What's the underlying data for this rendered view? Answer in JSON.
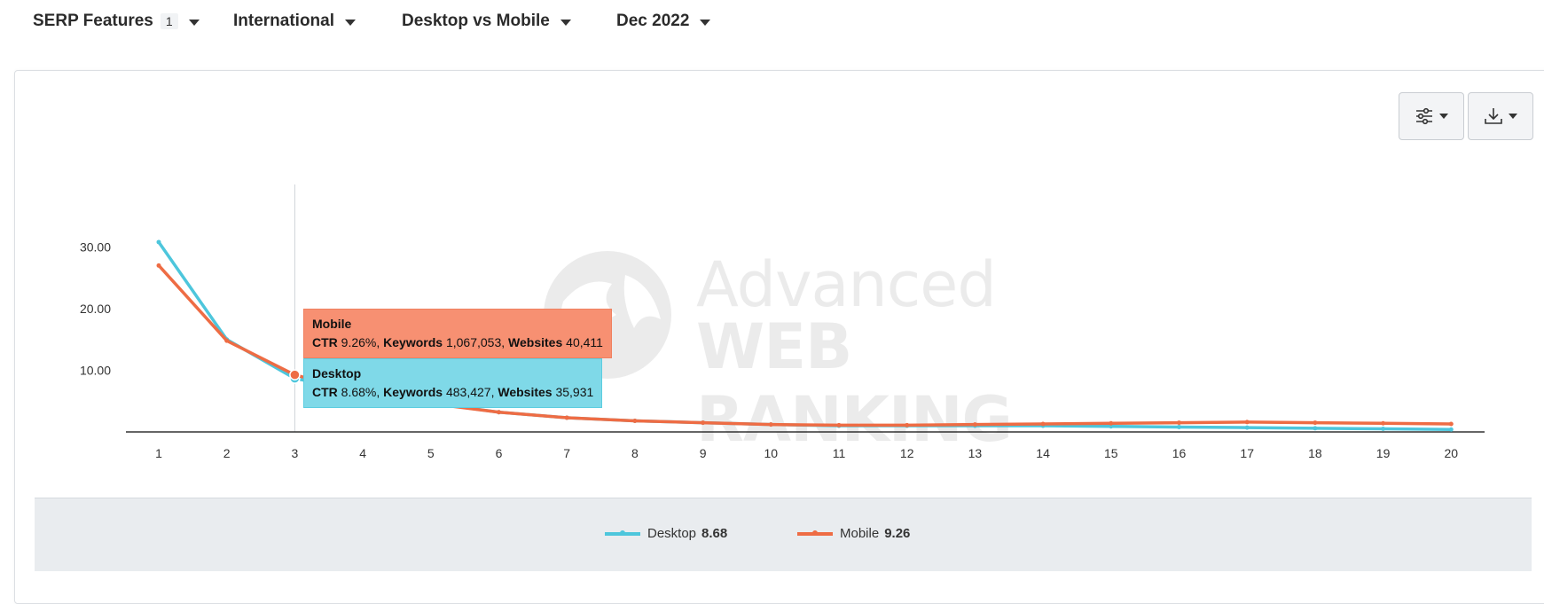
{
  "filters": [
    {
      "label": "SERP Features",
      "badge": "1"
    },
    {
      "label": "International"
    },
    {
      "label": "Desktop vs Mobile"
    },
    {
      "label": "Dec 2022"
    }
  ],
  "toolbar": {
    "settings_icon": "sliders-icon",
    "download_icon": "download-icon"
  },
  "watermark": {
    "line1": "Advanced",
    "line2": "WEB RANKING"
  },
  "tooltip": {
    "mobile": {
      "title": "Mobile",
      "ctr_label": "CTR",
      "ctr": "9.26%",
      "keywords_label": "Keywords",
      "keywords": "1,067,053",
      "websites_label": "Websites",
      "websites": "40,411"
    },
    "desktop": {
      "title": "Desktop",
      "ctr_label": "CTR",
      "ctr": "8.68%",
      "keywords_label": "Keywords",
      "keywords": "483,427",
      "websites_label": "Websites",
      "websites": "35,931"
    }
  },
  "legend": [
    {
      "name": "Desktop",
      "value": "8.68",
      "color": "#4dc6dc"
    },
    {
      "name": "Mobile",
      "value": "9.26",
      "color": "#ee6c44"
    }
  ],
  "chart_data": {
    "type": "line",
    "x": [
      1,
      2,
      3,
      4,
      5,
      6,
      7,
      8,
      9,
      10,
      11,
      12,
      13,
      14,
      15,
      16,
      17,
      18,
      19,
      20
    ],
    "y_ticks": [
      "10.00",
      "20.00",
      "30.00"
    ],
    "y_tick_values": [
      10,
      20,
      30
    ],
    "ylim": [
      0,
      40
    ],
    "highlight_x": 3,
    "series": [
      {
        "name": "Desktop",
        "color": "#4dc6dc",
        "values": [
          30.8,
          15.0,
          8.68,
          6.5,
          4.7,
          3.2,
          2.3,
          1.8,
          1.5,
          1.2,
          1.0,
          1.0,
          1.0,
          1.0,
          0.9,
          0.8,
          0.7,
          0.6,
          0.5,
          0.4
        ]
      },
      {
        "name": "Mobile",
        "color": "#ee6c44",
        "values": [
          27.0,
          14.8,
          9.26,
          6.4,
          4.6,
          3.2,
          2.3,
          1.8,
          1.5,
          1.2,
          1.1,
          1.1,
          1.2,
          1.3,
          1.4,
          1.5,
          1.6,
          1.5,
          1.4,
          1.3
        ]
      }
    ]
  }
}
